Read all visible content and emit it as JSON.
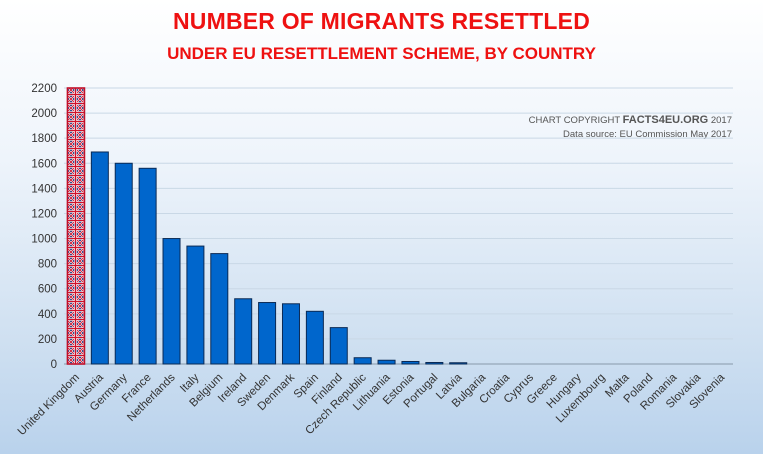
{
  "chart_data": {
    "type": "bar",
    "title": "NUMBER OF MIGRANTS RESETTLED",
    "subtitle": "UNDER EU RESETTLEMENT SCHEME, BY COUNTRY",
    "xlabel": "",
    "ylabel": "",
    "ylim": [
      0,
      2200
    ],
    "yticks": [
      0,
      200,
      400,
      600,
      800,
      1000,
      1200,
      1400,
      1600,
      1800,
      2000,
      2200
    ],
    "grid": true,
    "categories": [
      "United Kingdom",
      "Austria",
      "Germany",
      "France",
      "Netherlands",
      "Italy",
      "Belgium",
      "Ireland",
      "Sweden",
      "Denmark",
      "Spain",
      "Finland",
      "Czech Republic",
      "Lithuania",
      "Estonia",
      "Portugal",
      "Latvia",
      "Bulgaria",
      "Croatia",
      "Cyprus",
      "Greece",
      "Hungary",
      "Luxembourg",
      "Malta",
      "Poland",
      "Romania",
      "Slovakia",
      "Slovenia"
    ],
    "values": [
      2200,
      1690,
      1600,
      1560,
      1000,
      940,
      880,
      520,
      490,
      480,
      420,
      290,
      50,
      30,
      20,
      12,
      10,
      0,
      0,
      0,
      0,
      0,
      0,
      0,
      0,
      0,
      0,
      0
    ],
    "colors": {
      "bar": "#0066cc",
      "bar_outline": "#0a2a55",
      "highlight_flag": "union-jack-pattern"
    },
    "annotation": {
      "copyright_prefix": "CHART COPYRIGHT ",
      "copyright_brand": "FACTS4EU.ORG",
      "copyright_year": " 2017",
      "source": "Data source: EU Commission May 2017"
    }
  }
}
